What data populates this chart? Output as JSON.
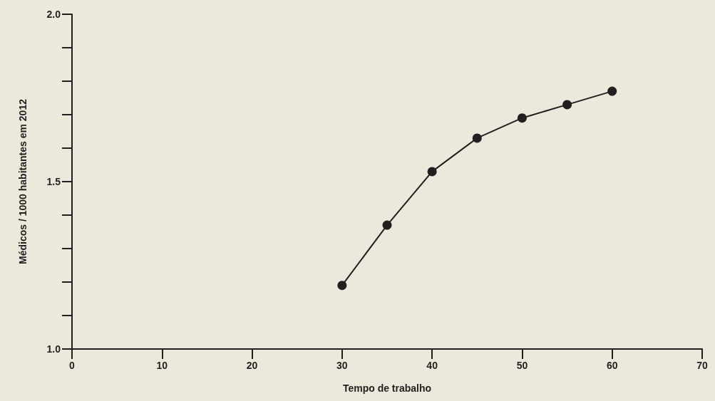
{
  "chart_data": {
    "type": "line",
    "xlabel": "Tempo de trabalho",
    "ylabel": "Médicos / 1000 habitantes em 2012",
    "x": [
      30,
      35,
      40,
      45,
      50,
      55,
      60
    ],
    "series": [
      {
        "color": "#231f20",
        "values": [
          1.19,
          1.37,
          1.53,
          1.63,
          1.69,
          1.73,
          1.77
        ]
      }
    ],
    "xlim": [
      0,
      70
    ],
    "xticks": [
      0,
      10,
      20,
      30,
      40,
      50,
      60,
      70
    ],
    "ylim": [
      1.0,
      2.0
    ],
    "yticks": [
      {
        "value": 1.0,
        "label": "1.0"
      },
      {
        "value": 1.1,
        "label": null
      },
      {
        "value": 1.2,
        "label": null
      },
      {
        "value": 1.3,
        "label": null
      },
      {
        "value": 1.4,
        "label": null
      },
      {
        "value": 1.5,
        "label": "1.5"
      },
      {
        "value": 1.6,
        "label": null
      },
      {
        "value": 1.7,
        "label": null
      },
      {
        "value": 1.8,
        "label": null
      },
      {
        "value": 1.9,
        "label": null
      },
      {
        "value": 2.0,
        "label": "2.0"
      }
    ],
    "grid": false,
    "marker": "circle",
    "line_style": "solid"
  }
}
